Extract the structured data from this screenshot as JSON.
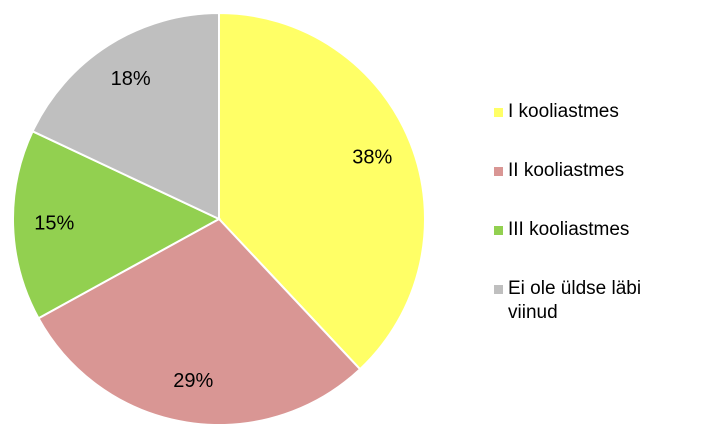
{
  "chart_data": {
    "type": "pie",
    "categories": [
      "I kooliastmes",
      "II kooliastmes",
      "III kooliastmes",
      "Ei ole üldse läbi viinud"
    ],
    "values": [
      38,
      29,
      15,
      18
    ],
    "value_labels": [
      "38%",
      "29%",
      "15%",
      "18%"
    ],
    "colors": [
      "#ffff66",
      "#d99694",
      "#92d050",
      "#bfbfbf"
    ],
    "legend": "right"
  }
}
